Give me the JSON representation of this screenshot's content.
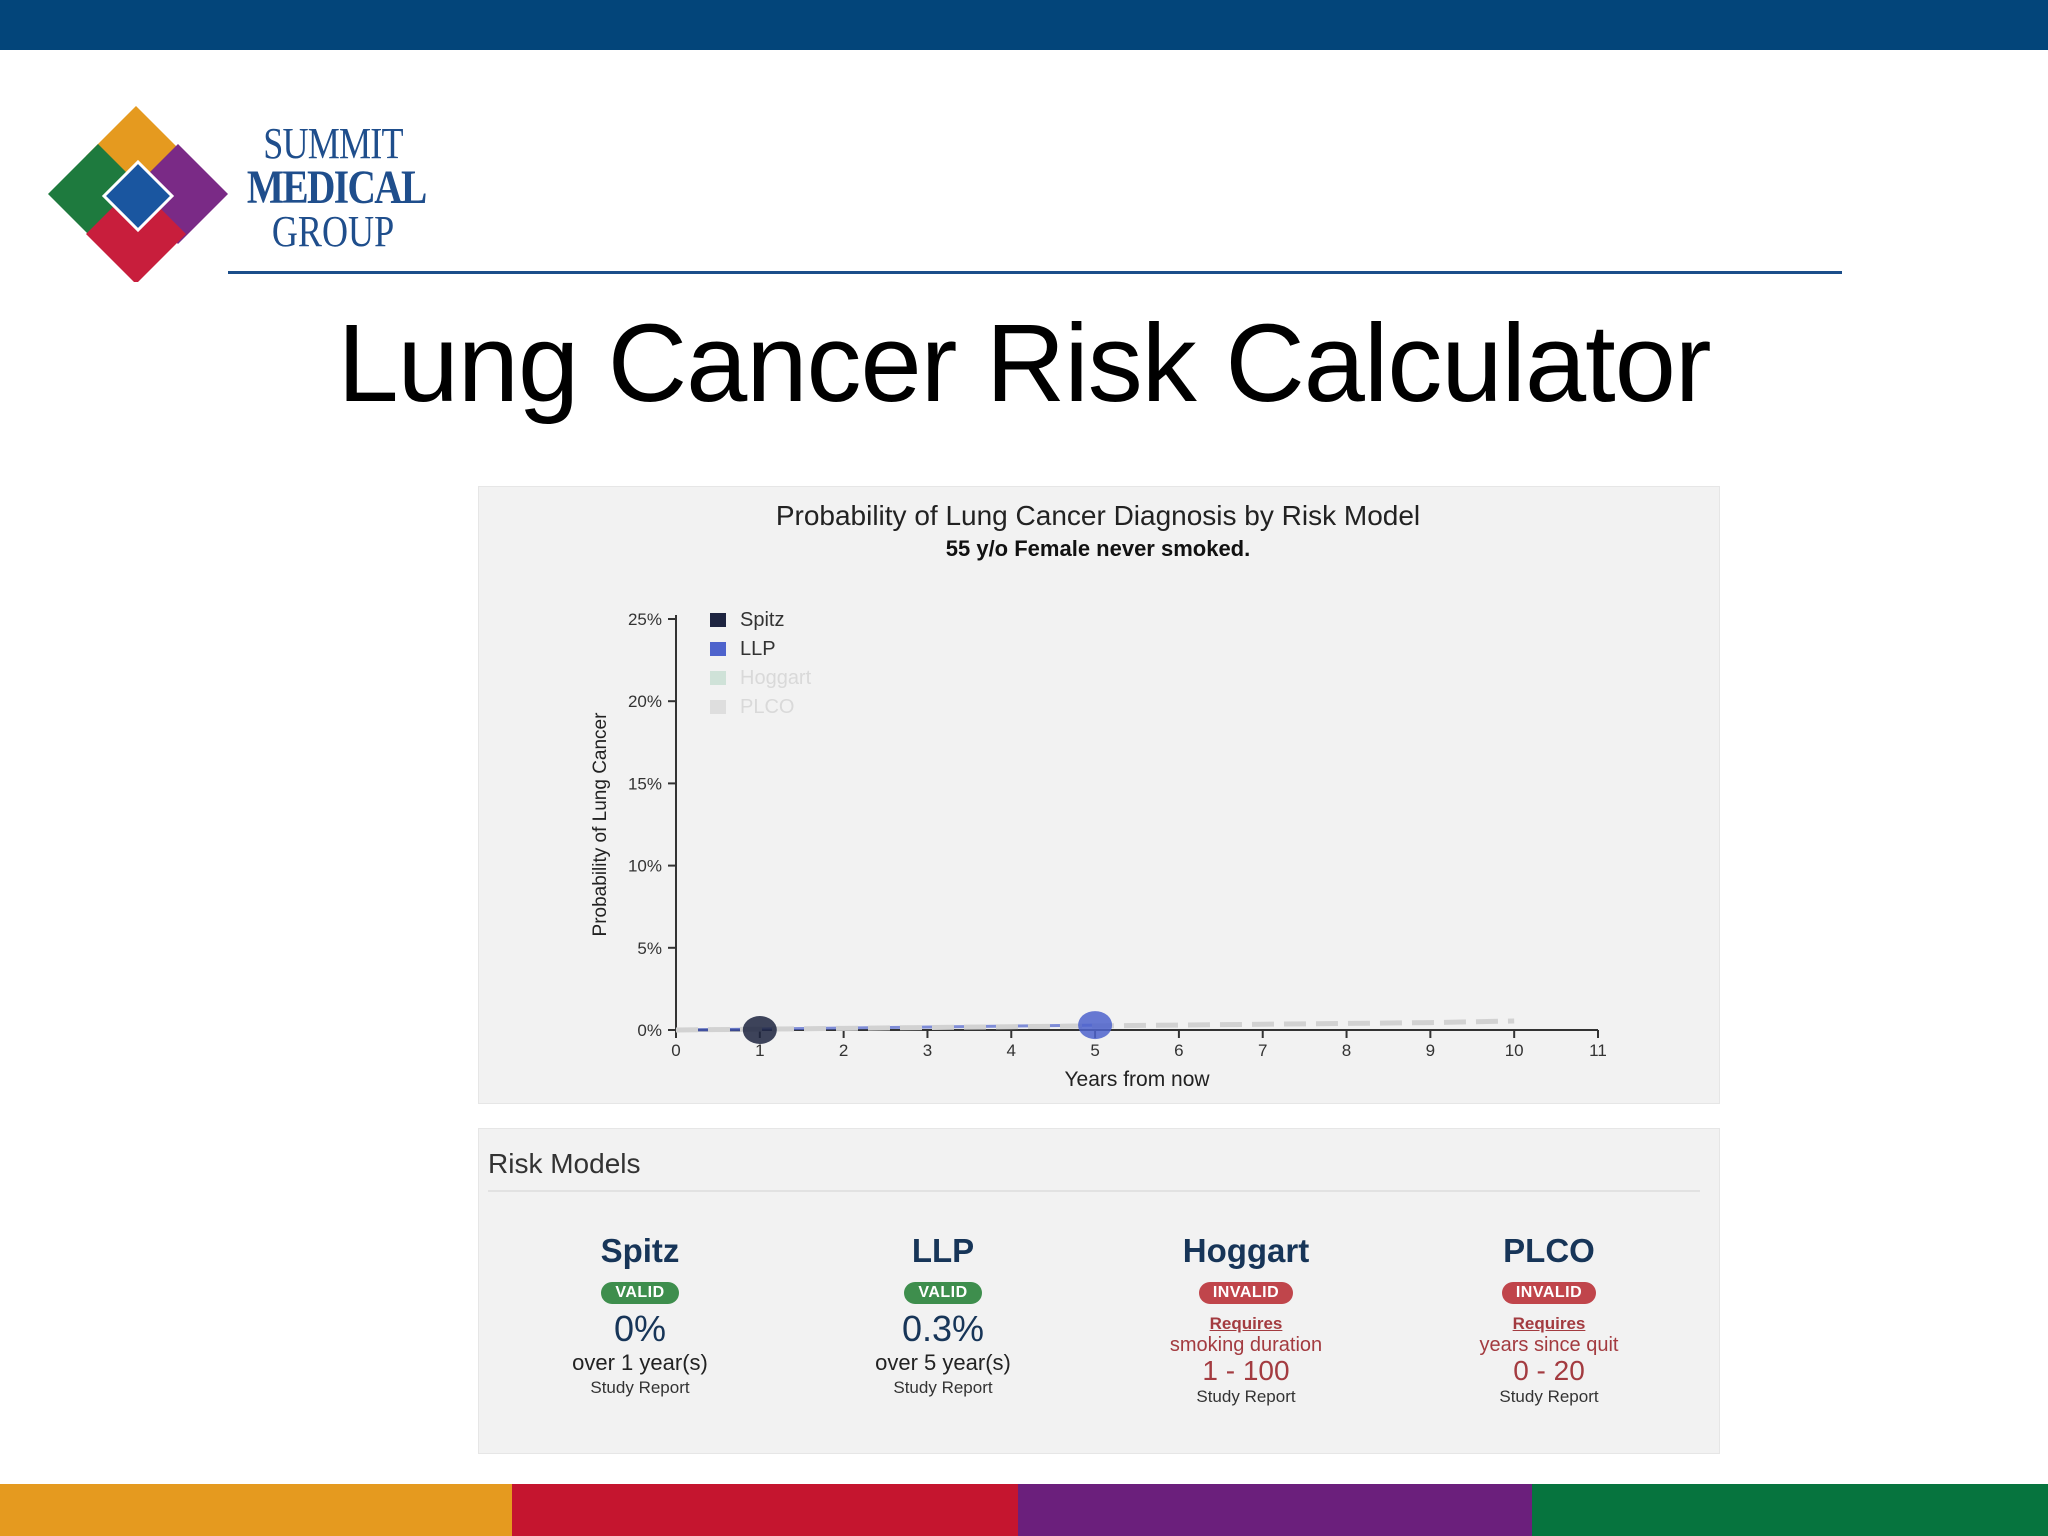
{
  "logo": {
    "line1": "SUMMIT",
    "line2": "MEDICAL",
    "line3": "GROUP"
  },
  "slide_title": "Lung Cancer Risk Calculator",
  "chart_data": {
    "type": "line",
    "title": "Probability of Lung Cancer Diagnosis by Risk Model",
    "subtitle": "55 y/o Female never smoked.",
    "xlabel": "Years from now",
    "ylabel": "Probability of Lung Cancer",
    "xlim": [
      0,
      11
    ],
    "ylim": [
      0,
      25
    ],
    "x_ticks": [
      "0",
      "1",
      "2",
      "3",
      "4",
      "5",
      "6",
      "7",
      "8",
      "9",
      "10",
      "11"
    ],
    "y_ticks": [
      "0%",
      "5%",
      "10%",
      "15%",
      "20%",
      "25%"
    ],
    "legend_position": "top-left",
    "grid": false,
    "series": [
      {
        "name": "Spitz",
        "color": "#1d2440",
        "x": [
          0,
          1
        ],
        "y": [
          0,
          0
        ],
        "marker": {
          "x": 1,
          "y": 0
        }
      },
      {
        "name": "LLP",
        "color": "#4e63cc",
        "x": [
          0,
          5
        ],
        "y": [
          0,
          0.3
        ],
        "marker": {
          "x": 5,
          "y": 0.3
        }
      },
      {
        "name": "Hoggart",
        "color": "#cfe2d8",
        "x": [],
        "y": []
      },
      {
        "name": "PLCO",
        "color": "#dedede",
        "x": [
          0,
          1,
          2,
          3,
          4,
          5,
          6,
          7,
          8,
          9,
          10
        ],
        "y": [
          0,
          0.05,
          0.1,
          0.15,
          0.2,
          0.25,
          0.3,
          0.35,
          0.4,
          0.45,
          0.55
        ]
      }
    ]
  },
  "risk_models": {
    "heading": "Risk Models",
    "models": [
      {
        "name": "Spitz",
        "status": "VALID",
        "value": "0%",
        "period": "over 1 year(s)",
        "report": "Study Report"
      },
      {
        "name": "LLP",
        "status": "VALID",
        "value": "0.3%",
        "period": "over 5 year(s)",
        "report": "Study Report"
      },
      {
        "name": "Hoggart",
        "status": "INVALID",
        "requires": "Requires",
        "requirement": "smoking duration",
        "range": "1 - 100",
        "report": "Study Report"
      },
      {
        "name": "PLCO",
        "status": "INVALID",
        "requires": "Requires",
        "requirement": "years since quit",
        "range": "0 - 20",
        "report": "Study Report"
      }
    ]
  },
  "colors": {
    "top_bar": "#03457a",
    "bottom_bar": [
      "#e59a1f",
      "#c5152f",
      "#6b1f7c",
      "#06743e"
    ],
    "logo_tiles": [
      "#e59a1f",
      "#1e7a3e",
      "#1a56a0",
      "#7a2a86",
      "#c81e3c"
    ]
  }
}
